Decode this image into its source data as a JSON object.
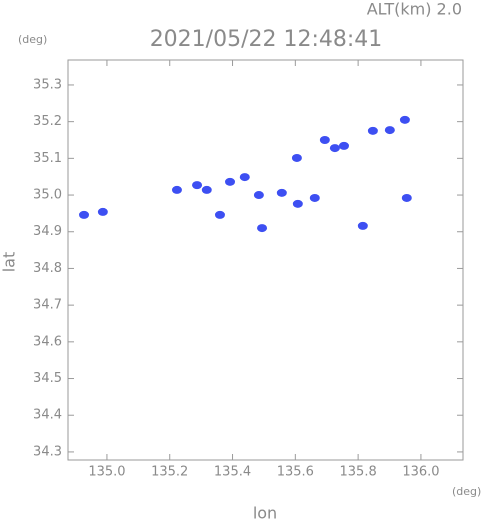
{
  "chart_data": {
    "type": "scatter",
    "title": "2021/05/22 12:48:41",
    "annotation": "ALT(km) 2.0",
    "y_unit": "(deg)",
    "x_unit": "(deg)",
    "xlabel": "lon",
    "ylabel": "lat",
    "x": [
      134.927,
      134.987,
      135.223,
      135.287,
      135.318,
      135.36,
      135.392,
      135.439,
      135.484,
      135.494,
      135.557,
      135.605,
      135.608,
      135.662,
      135.694,
      135.726,
      135.755,
      135.815,
      135.847,
      135.901,
      135.949,
      135.955
    ],
    "series": [
      {
        "color": "#3d4ff2",
        "values": [
          34.946,
          34.954,
          35.014,
          35.027,
          35.014,
          34.946,
          35.036,
          35.049,
          35.0,
          34.91,
          35.006,
          35.101,
          34.976,
          34.992,
          35.15,
          35.128,
          35.134,
          34.916,
          35.175,
          35.177,
          35.205,
          34.992
        ]
      }
    ],
    "xlim": [
      134.876,
      136.134
    ],
    "ylim": [
      34.278,
      35.368
    ],
    "xticks": [
      {
        "value": 135,
        "label": "135.0"
      },
      135.2,
      135.4,
      135.6,
      135.8,
      {
        "value": 136,
        "label": "136.0"
      }
    ],
    "yticks": [
      34.3,
      34.4,
      34.5,
      34.6,
      34.7,
      34.8,
      34.9,
      {
        "value": 35,
        "label": "35.0"
      },
      35.1,
      35.2,
      35.3
    ],
    "grid": false
  }
}
